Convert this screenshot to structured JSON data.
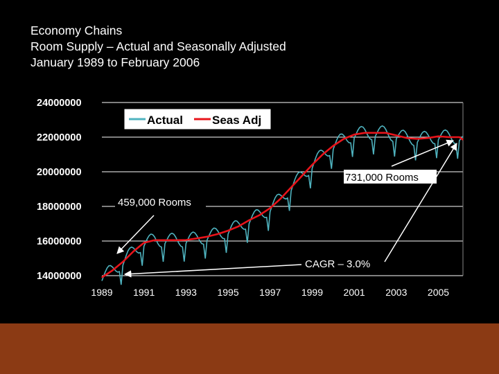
{
  "title_lines": [
    "Economy Chains",
    "Room Supply – Actual and Seasonally Adjusted",
    "January 1989 to February 2006"
  ],
  "colors": {
    "background": "#000000",
    "actual": "#4FB3BF",
    "seas_adj": "#E8141B",
    "footer": "#8B3A14",
    "grid": "#FFFFFF"
  },
  "chart_data": {
    "type": "line",
    "title": "Economy Chains Room Supply – Actual and Seasonally Adjusted",
    "xlabel": "",
    "ylabel": "",
    "xlim": [
      1989.0,
      2006.17
    ],
    "ylim": [
      14000000,
      24000000
    ],
    "yticks": [
      {
        "value": 24000000,
        "label": "24000000"
      },
      {
        "value": 22000000,
        "label": "22000000"
      },
      {
        "value": 20000000,
        "label": "20000000"
      },
      {
        "value": 18000000,
        "label": "18000000"
      },
      {
        "value": 16000000,
        "label": "16000000"
      },
      {
        "value": 14000000,
        "label": "14000000"
      }
    ],
    "xticks": [
      {
        "value": 1989,
        "label": "1989"
      },
      {
        "value": 1991,
        "label": "1991"
      },
      {
        "value": 1993,
        "label": "1993"
      },
      {
        "value": 1995,
        "label": "1995"
      },
      {
        "value": 1997,
        "label": "1997"
      },
      {
        "value": 1999,
        "label": "1999"
      },
      {
        "value": 2001,
        "label": "2001"
      },
      {
        "value": 2003,
        "label": "2003"
      },
      {
        "value": 2005,
        "label": "2005"
      }
    ],
    "legend": {
      "position": "top-left",
      "entries": [
        "Actual",
        "Seas Adj"
      ]
    },
    "series": [
      {
        "name": "Seas Adj",
        "x": [
          1989.0,
          1989.5,
          1990.0,
          1990.5,
          1991.0,
          1991.5,
          1992.0,
          1992.5,
          1993.0,
          1993.5,
          1994.0,
          1994.5,
          1995.0,
          1995.5,
          1996.0,
          1996.5,
          1997.0,
          1997.5,
          1998.0,
          1998.5,
          1999.0,
          1999.5,
          2000.0,
          2000.5,
          2001.0,
          2001.5,
          2002.0,
          2002.5,
          2003.0,
          2003.5,
          2004.0,
          2004.5,
          2005.0,
          2005.5,
          2006.0,
          2006.17
        ],
        "values": [
          13900000,
          14300000,
          14800000,
          15400000,
          15900000,
          16050000,
          16050000,
          16050000,
          16060000,
          16150000,
          16250000,
          16400000,
          16600000,
          16850000,
          17200000,
          17500000,
          17900000,
          18450000,
          19100000,
          19750000,
          20400000,
          21000000,
          21500000,
          21900000,
          22150000,
          22250000,
          22250000,
          22250000,
          22100000,
          21950000,
          21900000,
          21950000,
          22050000,
          22000000,
          22000000,
          21850000
        ]
      },
      {
        "name": "Actual",
        "description_note": "monthly series oscillating around Seas Adj with deep dips each December/January",
        "amplitude": 400000,
        "dip_depth": 900000,
        "period_months": 12
      }
    ],
    "annotations": [
      {
        "text": "731,000 Rooms"
      },
      {
        "text": "459,000 Rooms"
      },
      {
        "text": "CAGR – 3.0%"
      }
    ]
  }
}
